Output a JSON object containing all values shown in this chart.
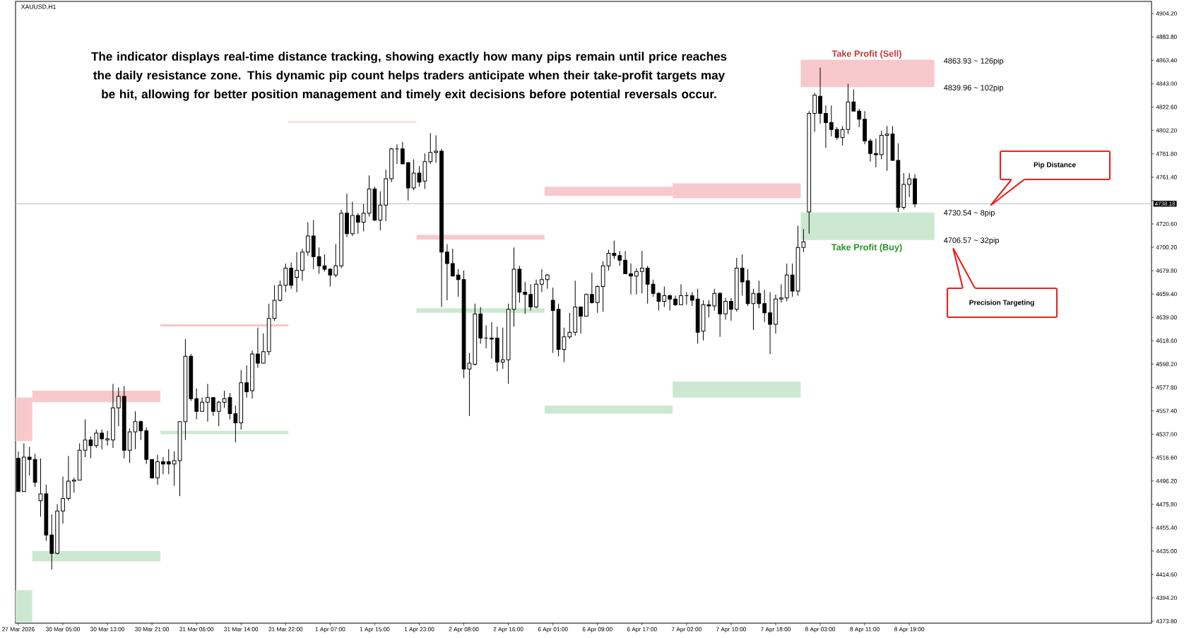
{
  "chart_data": {
    "type": "candlestick",
    "title": "XAUUSD,H1",
    "color": "#000000",
    "annotations": [
      "The indicator displays real-time distance tracking, showing exactly how many pips remain until price reaches the daily resistance zone. This dynamic pip count helps traders anticipate when their take-profit targets may be hit, allowing for better position management and timely exit decisions before potential reversals occur.",
      "4863.93 ~ 126pip",
      "4839.96 ~ 102pip",
      "4730.54 ~ 8pip",
      "4706.57 ~ 32pip",
      "Take Profit (Sell)",
      "Take Profit (Buy)",
      "Pip Distance",
      "Precision Targeting"
    ],
    "categories": [
      "27 Mar 2026",
      null,
      null,
      null,
      null,
      null,
      null,
      null,
      "30 Mar 05:00",
      null,
      null,
      null,
      null,
      null,
      null,
      null,
      "30 Mar 13:00",
      null,
      null,
      null,
      null,
      null,
      null,
      null,
      "30 Mar 21:00",
      null,
      null,
      null,
      null,
      null,
      null,
      null,
      "31 Mar 06:00",
      null,
      null,
      null,
      null,
      null,
      null,
      null,
      "31 Mar 14:00",
      null,
      null,
      null,
      null,
      null,
      null,
      null,
      "31 Mar 22:00",
      null,
      null,
      null,
      null,
      null,
      null,
      null,
      "1 Apr 07:00",
      null,
      null,
      null,
      null,
      null,
      null,
      null,
      "1 Apr 15:00",
      null,
      null,
      null,
      null,
      null,
      null,
      null,
      "1 Apr 23:00",
      null,
      null,
      null,
      null,
      null,
      null,
      null,
      "2 Apr 08:00",
      null,
      null,
      null,
      null,
      null,
      null,
      null,
      "2 Apr 16:00",
      null,
      null,
      null,
      null,
      null,
      null,
      null,
      "6 Apr 01:00",
      null,
      null,
      null,
      null,
      null,
      null,
      null,
      "6 Apr 09:00",
      null,
      null,
      null,
      null,
      null,
      null,
      null,
      "6 Apr 17:00",
      null,
      null,
      null,
      null,
      null,
      null,
      null,
      "7 Apr 02:00",
      null,
      null,
      null,
      null,
      null,
      null,
      null,
      "7 Apr 10:00",
      null,
      null,
      null,
      null,
      null,
      null,
      null,
      "7 Apr 18:00",
      null,
      null,
      null,
      null,
      null,
      null,
      null,
      "8 Apr 03:00",
      null,
      null,
      null,
      null,
      null,
      null,
      null,
      "8 Apr 11:00",
      null,
      null,
      null,
      null,
      null,
      null,
      null,
      "8 Apr 19:00",
      null,
      null,
      null,
      null,
      null,
      null,
      null,
      null,
      null,
      null,
      null,
      null,
      null,
      null,
      null,
      null,
      null,
      null,
      null,
      null,
      null,
      null,
      null,
      null,
      null,
      null,
      null,
      null,
      null,
      null,
      null,
      null,
      null,
      null,
      null,
      null,
      null,
      null,
      null,
      null,
      null,
      null,
      null
    ],
    "ohlc": [
      [
        4516,
        4522,
        4487,
        4487
      ],
      [
        4487,
        4529,
        4487,
        4517
      ],
      [
        4517,
        4526,
        4501,
        4515
      ],
      [
        4515,
        4520,
        4491,
        4495
      ],
      [
        4479,
        4516,
        4465,
        4485
      ],
      [
        4485,
        4493,
        4444,
        4449
      ],
      [
        4449,
        4467,
        4419,
        4433
      ],
      [
        4433,
        4476,
        4432,
        4470
      ],
      [
        4470,
        4500,
        4459,
        4481
      ],
      [
        4481,
        4518,
        4479,
        4496
      ],
      [
        4496,
        4499,
        4486,
        4497
      ],
      [
        4497,
        4529,
        4497,
        4523
      ],
      [
        4523,
        4550,
        4517,
        4532
      ],
      [
        4532,
        4535,
        4516,
        4527
      ],
      [
        4527,
        4541,
        4525,
        4538
      ],
      [
        4538,
        4541,
        4524,
        4533
      ],
      [
        4532,
        4540,
        4527,
        4533
      ],
      [
        4532,
        4581,
        4525,
        4560
      ],
      [
        4560,
        4578,
        4544,
        4570
      ],
      [
        4570,
        4579,
        4516,
        4523
      ],
      [
        4523,
        4542,
        4512,
        4539
      ],
      [
        4539,
        4557,
        4524,
        4548
      ],
      [
        4548,
        4549,
        4532,
        4540
      ],
      [
        4540,
        4543,
        4511,
        4515
      ],
      [
        4515,
        4515,
        4498,
        4499
      ],
      [
        4499,
        4519,
        4493,
        4513
      ],
      [
        4513,
        4517,
        4502,
        4511
      ],
      [
        4513,
        4524,
        4502,
        4511
      ],
      [
        4511,
        4522,
        4492,
        4514
      ],
      [
        4514,
        4548,
        4483,
        4548
      ],
      [
        4548,
        4620,
        4532,
        4605
      ],
      [
        4605,
        4607,
        4566,
        4568
      ],
      [
        4568,
        4577,
        4550,
        4557
      ],
      [
        4557,
        4569,
        4557,
        4565
      ],
      [
        4565,
        4581,
        4548,
        4569
      ],
      [
        4569,
        4569,
        4553,
        4557
      ],
      [
        4557,
        4566,
        4544,
        4565
      ],
      [
        4565,
        4575,
        4560,
        4568
      ],
      [
        4569,
        4573,
        4550,
        4555
      ],
      [
        4555,
        4562,
        4530,
        4547
      ],
      [
        4547,
        4593,
        4541,
        4582
      ],
      [
        4582,
        4597,
        4569,
        4574
      ],
      [
        4575,
        4610,
        4568,
        4607
      ],
      [
        4607,
        4630,
        4595,
        4599
      ],
      [
        4599,
        4625,
        4599,
        4609
      ],
      [
        4609,
        4651,
        4606,
        4638
      ],
      [
        4638,
        4667,
        4636,
        4654
      ],
      [
        4654,
        4671,
        4653,
        4667
      ],
      [
        4667,
        4686,
        4661,
        4682
      ],
      [
        4682,
        4687,
        4664,
        4667
      ],
      [
        4674,
        4696,
        4661,
        4680
      ],
      [
        4680,
        4699,
        4671,
        4696
      ],
      [
        4696,
        4722,
        4693,
        4710
      ],
      [
        4710,
        4724,
        4681,
        4692
      ],
      [
        4692,
        4700,
        4677,
        4684
      ],
      [
        4684,
        4694,
        4679,
        4681
      ],
      [
        4681,
        4682,
        4666,
        4676
      ],
      [
        4676,
        4703,
        4674,
        4684
      ],
      [
        4684,
        4733,
        4682,
        4730
      ],
      [
        4730,
        4747,
        4709,
        4712
      ],
      [
        4712,
        4740,
        4710,
        4728
      ],
      [
        4728,
        4730,
        4712,
        4722
      ],
      [
        4722,
        4738,
        4714,
        4730
      ],
      [
        4730,
        4763,
        4727,
        4751
      ],
      [
        4751,
        4753,
        4723,
        4724
      ],
      [
        4724,
        4749,
        4715,
        4737
      ],
      [
        4737,
        4768,
        4723,
        4760
      ],
      [
        4760,
        4787,
        4757,
        4786
      ],
      [
        4786,
        4790,
        4773,
        4786
      ],
      [
        4786,
        4792,
        4773,
        4773
      ],
      [
        4774,
        4775,
        4741,
        4752
      ],
      [
        4752,
        4777,
        4750,
        4765
      ],
      [
        4765,
        4771,
        4753,
        4757
      ],
      [
        4758,
        4782,
        4751,
        4775
      ],
      [
        4775,
        4800,
        4773,
        4783
      ],
      [
        4783,
        4798,
        4774,
        4784
      ],
      [
        4784,
        4786,
        4648,
        4696
      ],
      [
        4696,
        4703,
        4654,
        4686
      ],
      [
        4686,
        4699,
        4675,
        4675
      ],
      [
        4676,
        4681,
        4657,
        4672
      ],
      [
        4672,
        4680,
        4586,
        4594
      ],
      [
        4594,
        4608,
        4553,
        4599
      ],
      [
        4598,
        4651,
        4597,
        4642
      ],
      [
        4642,
        4648,
        4616,
        4621
      ],
      [
        4621,
        4632,
        4612,
        4621
      ],
      [
        4621,
        4635,
        4603,
        4620
      ],
      [
        4621,
        4631,
        4592,
        4600
      ],
      [
        4600,
        4630,
        4594,
        4602
      ],
      [
        4602,
        4651,
        4581,
        4646
      ],
      [
        4646,
        4700,
        4631,
        4681
      ],
      [
        4681,
        4684,
        4652,
        4661
      ],
      [
        4661,
        4670,
        4642,
        4659
      ],
      [
        4659,
        4668,
        4645,
        4648
      ],
      [
        4648,
        4672,
        4647,
        4668
      ],
      [
        4668,
        4681,
        4661,
        4672
      ],
      [
        4672,
        4677,
        4664,
        4676
      ],
      [
        4654,
        4665,
        4608,
        4645
      ],
      [
        4646,
        4651,
        4605,
        4611
      ],
      [
        4611,
        4630,
        4600,
        4622
      ],
      [
        4622,
        4643,
        4620,
        4626
      ],
      [
        4626,
        4671,
        4623,
        4648
      ],
      [
        4648,
        4648,
        4625,
        4640
      ],
      [
        4640,
        4660,
        4640,
        4659
      ],
      [
        4659,
        4678,
        4651,
        4652
      ],
      [
        4652,
        4667,
        4643,
        4666
      ],
      [
        4666,
        4688,
        4644,
        4684
      ],
      [
        4684,
        4698,
        4680,
        4695
      ],
      [
        4695,
        4706,
        4690,
        4693
      ],
      [
        4693,
        4697,
        4684,
        4689
      ],
      [
        4689,
        4697,
        4677,
        4677
      ],
      [
        4677,
        4686,
        4659,
        4675
      ],
      [
        4675,
        4682,
        4659,
        4679
      ],
      [
        4679,
        4697,
        4660,
        4682
      ],
      [
        4682,
        4684,
        4651,
        4668
      ],
      [
        4668,
        4672,
        4657,
        4660
      ],
      [
        4660,
        4661,
        4645,
        4653
      ],
      [
        4653,
        4666,
        4648,
        4658
      ],
      [
        4658,
        4659,
        4645,
        4655
      ],
      [
        4655,
        4658,
        4649,
        4650
      ],
      [
        4650,
        4668,
        4650,
        4658
      ],
      [
        4658,
        4661,
        4650,
        4658
      ],
      [
        4658,
        4661,
        4649,
        4654
      ],
      [
        4655,
        4664,
        4616,
        4626
      ],
      [
        4627,
        4654,
        4619,
        4650
      ],
      [
        4650,
        4654,
        4639,
        4649
      ],
      [
        4649,
        4664,
        4645,
        4660
      ],
      [
        4660,
        4661,
        4622,
        4642
      ],
      [
        4642,
        4656,
        4637,
        4653
      ],
      [
        4653,
        4656,
        4636,
        4646
      ],
      [
        4646,
        4691,
        4644,
        4682
      ],
      [
        4682,
        4694,
        4658,
        4670
      ],
      [
        4671,
        4681,
        4649,
        4651
      ],
      [
        4651,
        4664,
        4628,
        4660
      ],
      [
        4660,
        4671,
        4647,
        4651
      ],
      [
        4651,
        4663,
        4635,
        4643
      ],
      [
        4643,
        4661,
        4607,
        4633
      ],
      [
        4633,
        4659,
        4625,
        4655
      ],
      [
        4655,
        4668,
        4652,
        4656
      ],
      [
        4656,
        4686,
        4653,
        4676
      ],
      [
        4676,
        4686,
        4657,
        4662
      ],
      [
        4662,
        4719,
        4658,
        4700
      ],
      [
        4700,
        4716,
        4696,
        4705
      ],
      [
        4731,
        4819,
        4712,
        4817
      ],
      [
        4817,
        4835,
        4801,
        4833
      ],
      [
        4832,
        4857,
        4808,
        4817
      ],
      [
        4817,
        4824,
        4787,
        4809
      ],
      [
        4809,
        4824,
        4797,
        4803
      ],
      [
        4803,
        4805,
        4794,
        4796
      ],
      [
        4796,
        4806,
        4789,
        4803
      ],
      [
        4803,
        4843,
        4799,
        4827
      ],
      [
        4827,
        4838,
        4819,
        4819
      ],
      [
        4819,
        4821,
        4805,
        4812
      ],
      [
        4812,
        4819,
        4790,
        4793
      ],
      [
        4793,
        4795,
        4775,
        4782
      ],
      [
        4782,
        4795,
        4770,
        4781
      ],
      [
        4781,
        4802,
        4777,
        4798
      ],
      [
        4798,
        4806,
        4767,
        4799
      ],
      [
        4799,
        4806,
        4776,
        4776
      ],
      [
        4776,
        4791,
        4731,
        4735
      ],
      [
        4735,
        4765,
        4733,
        4755
      ],
      [
        4755,
        4765,
        4744,
        4760
      ],
      [
        4760,
        4764,
        4735,
        4738
      ],
      null,
      null,
      null,
      null,
      null,
      null,
      null,
      null,
      null,
      null,
      null,
      null,
      null,
      null,
      null,
      null,
      null,
      null,
      null,
      null,
      null,
      null,
      null,
      null,
      null,
      null,
      null,
      null,
      null,
      null,
      null,
      null,
      null,
      null,
      null,
      null,
      null,
      null,
      null,
      null,
      null,
      null
    ],
    "series": [
      {
        "type": "area",
        "color": "#f8c9cc",
        "values": [
          null,
          null,
          null,
          null,
          null,
          null,
          null,
          null,
          null,
          null,
          null,
          null,
          null,
          null,
          null,
          null,
          null,
          null,
          null,
          null,
          null,
          null,
          null,
          null,
          null,
          null,
          null,
          null,
          null,
          null,
          null,
          null,
          null,
          null,
          null,
          null,
          null,
          null,
          null,
          null,
          null,
          null,
          null,
          null,
          null,
          null,
          null,
          null,
          null,
          null,
          null,
          null,
          null,
          null,
          null,
          null,
          null,
          null,
          null,
          null,
          null,
          null,
          null,
          null,
          null,
          null,
          null,
          null,
          null,
          null,
          null,
          null,
          null,
          null,
          null,
          null,
          null,
          null,
          null,
          null,
          null,
          null,
          null,
          null,
          null,
          null,
          null,
          null,
          null,
          null,
          null,
          null,
          null,
          null,
          null,
          null,
          null,
          null,
          null,
          null,
          null,
          null,
          null,
          null,
          null,
          null,
          null,
          null,
          null,
          null,
          null,
          null,
          null,
          null,
          null,
          null,
          null,
          null,
          null,
          null,
          null,
          null,
          null,
          null,
          null,
          null,
          null,
          null,
          null,
          null,
          null,
          null,
          null,
          null,
          null,
          null,
          null,
          null,
          null,
          null,
          null,
          null,
          null,
          null,
          null,
          null,
          null,
          null,
          null,
          null,
          null,
          null,
          null,
          null,
          null,
          null,
          null,
          null,
          null,
          null,
          null,
          null,
          null,
          null,
          null,
          null,
          null,
          null,
          null,
          null,
          null,
          null,
          null,
          null,
          null,
          null,
          null,
          null,
          null,
          null,
          null,
          null,
          null,
          null,
          null,
          null,
          null,
          null,
          null,
          null,
          null,
          null,
          null,
          null,
          null,
          null,
          null,
          null,
          null,
          null,
          null,
          null,
          null,
          null
        ],
        "upper": [
          4569,
          4569,
          4569,
          4575,
          4575,
          4575,
          4575,
          4575,
          4575,
          4575,
          4575,
          4575,
          4575,
          4575,
          4575,
          4575,
          4575,
          4575,
          4575,
          4575,
          4575,
          4575,
          4575,
          4575,
          4575,
          4575,
          4633,
          4633,
          4633,
          4633,
          4633,
          4633,
          4633,
          4633,
          4633,
          4633,
          4633,
          4633,
          4633,
          4633,
          4633,
          4633,
          4633,
          4633,
          4633,
          4633,
          4633,
          4633,
          4633,
          4810,
          4810,
          4810,
          4810,
          4810,
          4810,
          4810,
          4810,
          4810,
          4810,
          4810,
          4810,
          4810,
          4810,
          4810,
          4810,
          4810,
          4810,
          4810,
          4810,
          4810,
          4810,
          4810,
          4711,
          4711,
          4711,
          4711,
          4711,
          4711,
          4711,
          4711,
          4711,
          4711,
          4711,
          4711,
          4711,
          4711,
          4711,
          4711,
          4711,
          4711,
          4711,
          4711,
          4711,
          4711,
          4711,
          4753,
          4753,
          4753,
          4753,
          4753,
          4753,
          4753,
          4753,
          4753,
          4753,
          4753,
          4753,
          4753,
          4753,
          4753,
          4753,
          4753,
          4753,
          4753,
          4753,
          4753,
          4753,
          4753,
          4756,
          4756,
          4756,
          4756,
          4756,
          4756,
          4756,
          4756,
          4756,
          4756,
          4756,
          4756,
          4756,
          4756,
          4756,
          4756,
          4756,
          4756,
          4756,
          4756,
          4756,
          4756,
          4756,
          4863.93,
          4863.93,
          4863.93,
          4863.93,
          4863.93,
          4863.93,
          4863.93,
          4863.93,
          4863.93,
          4863.93,
          4863.93,
          4863.93,
          4863.93,
          4863.93,
          4863.93,
          4863.93,
          4863.93,
          4863.93,
          4863.93,
          4863.93,
          4863.93,
          4863.93,
          4863.93,
          4863.93,
          null,
          null,
          null,
          null,
          null,
          null,
          null,
          null,
          null,
          null,
          null,
          null,
          null,
          null,
          null,
          null,
          null,
          null,
          null,
          null,
          null,
          null,
          null,
          null,
          null,
          null,
          null,
          null,
          null,
          null,
          null,
          null,
          null,
          null,
          null,
          null,
          null,
          null,
          null
        ],
        "lower": [
          4531,
          4531,
          4531,
          4565,
          4565,
          4565,
          4565,
          4565,
          4565,
          4565,
          4565,
          4565,
          4565,
          4565,
          4565,
          4565,
          4565,
          4565,
          4565,
          4565,
          4565,
          4565,
          4565,
          4565,
          4565,
          4565,
          4631,
          4631,
          4631,
          4631,
          4631,
          4631,
          4631,
          4631,
          4631,
          4631,
          4631,
          4631,
          4631,
          4631,
          4631,
          4631,
          4631,
          4631,
          4631,
          4631,
          4631,
          4631,
          4631,
          4809,
          4809,
          4809,
          4809,
          4809,
          4809,
          4809,
          4809,
          4809,
          4809,
          4809,
          4809,
          4809,
          4809,
          4809,
          4809,
          4809,
          4809,
          4809,
          4809,
          4809,
          4809,
          4809,
          4707,
          4707,
          4707,
          4707,
          4707,
          4707,
          4707,
          4707,
          4707,
          4707,
          4707,
          4707,
          4707,
          4707,
          4707,
          4707,
          4707,
          4707,
          4707,
          4707,
          4707,
          4707,
          4707,
          4745,
          4745,
          4745,
          4745,
          4745,
          4745,
          4745,
          4745,
          4745,
          4745,
          4745,
          4745,
          4745,
          4745,
          4745,
          4745,
          4745,
          4745,
          4745,
          4745,
          4745,
          4745,
          4745,
          4743,
          4743,
          4743,
          4743,
          4743,
          4743,
          4743,
          4743,
          4743,
          4743,
          4743,
          4743,
          4743,
          4743,
          4743,
          4743,
          4743,
          4743,
          4743,
          4743,
          4743,
          4743,
          4743,
          4839.96,
          4839.96,
          4839.96,
          4839.96,
          4839.96,
          4839.96,
          4839.96,
          4839.96,
          4839.96,
          4839.96,
          4839.96,
          4839.96,
          4839.96,
          4839.96,
          4839.96,
          4839.96,
          4839.96,
          4839.96,
          4839.96,
          4839.96,
          4839.96,
          4839.96,
          4839.96,
          4839.96,
          null,
          null,
          null,
          null,
          null,
          null,
          null,
          null,
          null,
          null,
          null,
          null,
          null,
          null,
          null,
          null,
          null,
          null,
          null,
          null,
          null,
          null,
          null,
          null,
          null,
          null,
          null,
          null,
          null,
          null,
          null,
          null,
          null,
          null,
          null,
          null,
          null,
          null,
          null
        ]
      },
      {
        "type": "area",
        "color": "#cde8d1",
        "values": [
          null,
          null,
          null,
          null,
          null,
          null,
          null,
          null,
          null,
          null,
          null,
          null,
          null,
          null,
          null,
          null,
          null,
          null,
          null,
          null,
          null,
          null,
          null,
          null,
          null,
          null,
          null,
          null,
          null,
          null,
          null,
          null,
          null,
          null,
          null,
          null,
          null,
          null,
          null,
          null,
          null,
          null,
          null,
          null,
          null,
          null,
          null,
          null,
          null,
          null,
          null,
          null,
          null,
          null,
          null,
          null,
          null,
          null,
          null,
          null,
          null,
          null,
          null,
          null,
          null,
          null,
          null,
          null,
          null,
          null,
          null,
          null,
          null,
          null,
          null,
          null,
          null,
          null,
          null,
          null,
          null,
          null,
          null,
          null,
          null,
          null,
          null,
          null,
          null,
          null,
          null,
          null,
          null,
          null,
          null,
          null,
          null,
          null,
          null,
          null,
          null,
          null,
          null,
          null,
          null,
          null,
          null,
          null,
          null,
          null,
          null,
          null,
          null,
          null,
          null,
          null,
          null,
          null,
          null,
          null,
          null,
          null,
          null,
          null,
          null,
          null,
          null,
          null,
          null,
          null,
          null,
          null,
          null,
          null,
          null,
          null,
          null,
          null,
          null,
          null,
          null,
          null,
          null,
          null,
          null,
          null,
          null,
          null,
          null,
          null,
          null,
          null,
          null,
          null,
          null,
          null,
          null,
          null,
          null,
          null,
          null,
          null,
          null,
          null,
          null,
          null,
          null,
          null,
          null,
          null,
          null,
          null,
          null,
          null,
          null,
          null,
          null,
          null,
          null,
          null,
          null,
          null,
          null,
          null,
          null,
          null,
          null,
          null,
          null,
          null,
          null,
          null,
          null,
          null,
          null,
          null,
          null,
          null,
          null,
          null,
          null,
          null,
          null,
          null
        ],
        "upper": [
          4401,
          4401,
          4401,
          4435,
          4435,
          4435,
          4435,
          4435,
          4435,
          4435,
          4435,
          4435,
          4435,
          4435,
          4435,
          4435,
          4435,
          4435,
          4435,
          4435,
          4435,
          4435,
          4435,
          4435,
          4435,
          4435,
          4540,
          4540,
          4540,
          4540,
          4540,
          4540,
          4540,
          4540,
          4540,
          4540,
          4540,
          4540,
          4540,
          4540,
          4540,
          4540,
          4540,
          4540,
          4540,
          4540,
          4540,
          4540,
          4540,
          null,
          null,
          null,
          null,
          null,
          null,
          null,
          null,
          null,
          null,
          null,
          null,
          null,
          null,
          null,
          null,
          null,
          null,
          null,
          null,
          null,
          null,
          null,
          4647,
          4647,
          4647,
          4647,
          4647,
          4647,
          4647,
          4647,
          4647,
          4647,
          4647,
          4647,
          4647,
          4647,
          4647,
          4647,
          4647,
          4647,
          4647,
          4647,
          4647,
          4647,
          4647,
          4562,
          4562,
          4562,
          4562,
          4562,
          4562,
          4562,
          4562,
          4562,
          4562,
          4562,
          4562,
          4562,
          4562,
          4562,
          4562,
          4562,
          4562,
          4562,
          4562,
          4562,
          4562,
          4562,
          4583,
          4583,
          4583,
          4583,
          4583,
          4583,
          4583,
          4583,
          4583,
          4583,
          4583,
          4583,
          4583,
          4583,
          4583,
          4583,
          4583,
          4583,
          4583,
          4583,
          4583,
          4583,
          4583,
          4730.54,
          4730.54,
          4730.54,
          4730.54,
          4730.54,
          4730.54,
          4730.54,
          4730.54,
          4730.54,
          4730.54,
          4730.54,
          4730.54,
          4730.54,
          4730.54,
          4730.54,
          4730.54,
          4730.54,
          4730.54,
          4730.54,
          4730.54,
          4730.54,
          4730.54,
          4730.54,
          4730.54,
          null,
          null,
          null,
          null,
          null,
          null,
          null,
          null,
          null,
          null,
          null,
          null,
          null,
          null,
          null,
          null,
          null,
          null,
          null,
          null,
          null,
          null,
          null,
          null,
          null,
          null,
          null,
          null,
          null,
          null,
          null,
          null,
          null,
          null,
          null,
          null,
          null,
          null,
          null
        ],
        "lower": [
          4373,
          4373,
          4373,
          4426,
          4426,
          4426,
          4426,
          4426,
          4426,
          4426,
          4426,
          4426,
          4426,
          4426,
          4426,
          4426,
          4426,
          4426,
          4426,
          4426,
          4426,
          4426,
          4426,
          4426,
          4426,
          4426,
          4537,
          4537,
          4537,
          4537,
          4537,
          4537,
          4537,
          4537,
          4537,
          4537,
          4537,
          4537,
          4537,
          4537,
          4537,
          4537,
          4537,
          4537,
          4537,
          4537,
          4537,
          4537,
          4537,
          null,
          null,
          null,
          null,
          null,
          null,
          null,
          null,
          null,
          null,
          null,
          null,
          null,
          null,
          null,
          null,
          null,
          null,
          null,
          null,
          null,
          null,
          null,
          4643,
          4643,
          4643,
          4643,
          4643,
          4643,
          4643,
          4643,
          4643,
          4643,
          4643,
          4643,
          4643,
          4643,
          4643,
          4643,
          4643,
          4643,
          4643,
          4643,
          4643,
          4643,
          4643,
          4555,
          4555,
          4555,
          4555,
          4555,
          4555,
          4555,
          4555,
          4555,
          4555,
          4555,
          4555,
          4555,
          4555,
          4555,
          4555,
          4555,
          4555,
          4555,
          4555,
          4555,
          4555,
          4555,
          4569,
          4569,
          4569,
          4569,
          4569,
          4569,
          4569,
          4569,
          4569,
          4569,
          4569,
          4569,
          4569,
          4569,
          4569,
          4569,
          4569,
          4569,
          4569,
          4569,
          4569,
          4569,
          4569,
          4706.57,
          4706.57,
          4706.57,
          4706.57,
          4706.57,
          4706.57,
          4706.57,
          4706.57,
          4706.57,
          4706.57,
          4706.57,
          4706.57,
          4706.57,
          4706.57,
          4706.57,
          4706.57,
          4706.57,
          4706.57,
          4706.57,
          4706.57,
          4706.57,
          4706.57,
          4706.57,
          4706.57,
          null,
          null,
          null,
          null,
          null,
          null,
          null,
          null,
          null,
          null,
          null,
          null,
          null,
          null,
          null,
          null,
          null,
          null,
          null,
          null,
          null,
          null,
          null,
          null,
          null,
          null,
          null,
          null,
          null,
          null,
          null,
          null,
          null,
          null,
          null,
          null,
          null,
          null,
          null
        ]
      }
    ],
    "ylim": [
      4372.1,
      4914.8
    ],
    "yticks": [
      {
        "value": 4373.8,
        "label": "4373.80"
      },
      {
        "value": 4394.2,
        "label": "4394.20"
      },
      {
        "value": 4414.6,
        "label": "4414.60"
      },
      {
        "value": 4435.0,
        "label": "4435.00"
      },
      {
        "value": 4455.4,
        "label": "4455.40"
      },
      {
        "value": 4475.8,
        "label": "4475.80"
      },
      {
        "value": 4496.2,
        "label": "4496.20"
      },
      {
        "value": 4516.6,
        "label": "4516.60"
      },
      {
        "value": 4537.0,
        "label": "4537.00"
      },
      {
        "value": 4557.4,
        "label": "4557.40"
      },
      {
        "value": 4577.8,
        "label": "4577.80"
      },
      {
        "value": 4598.2,
        "label": "4598.20"
      },
      {
        "value": 4618.6,
        "label": "4618.60"
      },
      {
        "value": 4639.0,
        "label": "4639.00"
      },
      {
        "value": 4659.4,
        "label": "4659.40"
      },
      {
        "value": 4679.8,
        "label": "4679.80"
      },
      {
        "value": 4700.2,
        "label": "4700.20"
      },
      {
        "value": 4720.6,
        "label": "4720.60"
      },
      {
        "value": 4741.0,
        "label": null
      },
      {
        "value": 4761.4,
        "label": "4761.40"
      },
      {
        "value": 4781.8,
        "label": "4781.80"
      },
      {
        "value": 4802.2,
        "label": "4802.20"
      },
      {
        "value": 4822.6,
        "label": "4822.60"
      },
      {
        "value": 4843.0,
        "label": "4843.00"
      },
      {
        "value": 4863.4,
        "label": "4863.40"
      },
      {
        "value": 4883.8,
        "label": "4883.80"
      },
      {
        "value": 4904.2,
        "label": "4904.20"
      }
    ],
    "ref_lines": [
      {
        "axis": "y",
        "value": 4738.18,
        "label": "4738.18",
        "color": "#c0c0c0"
      }
    ]
  }
}
